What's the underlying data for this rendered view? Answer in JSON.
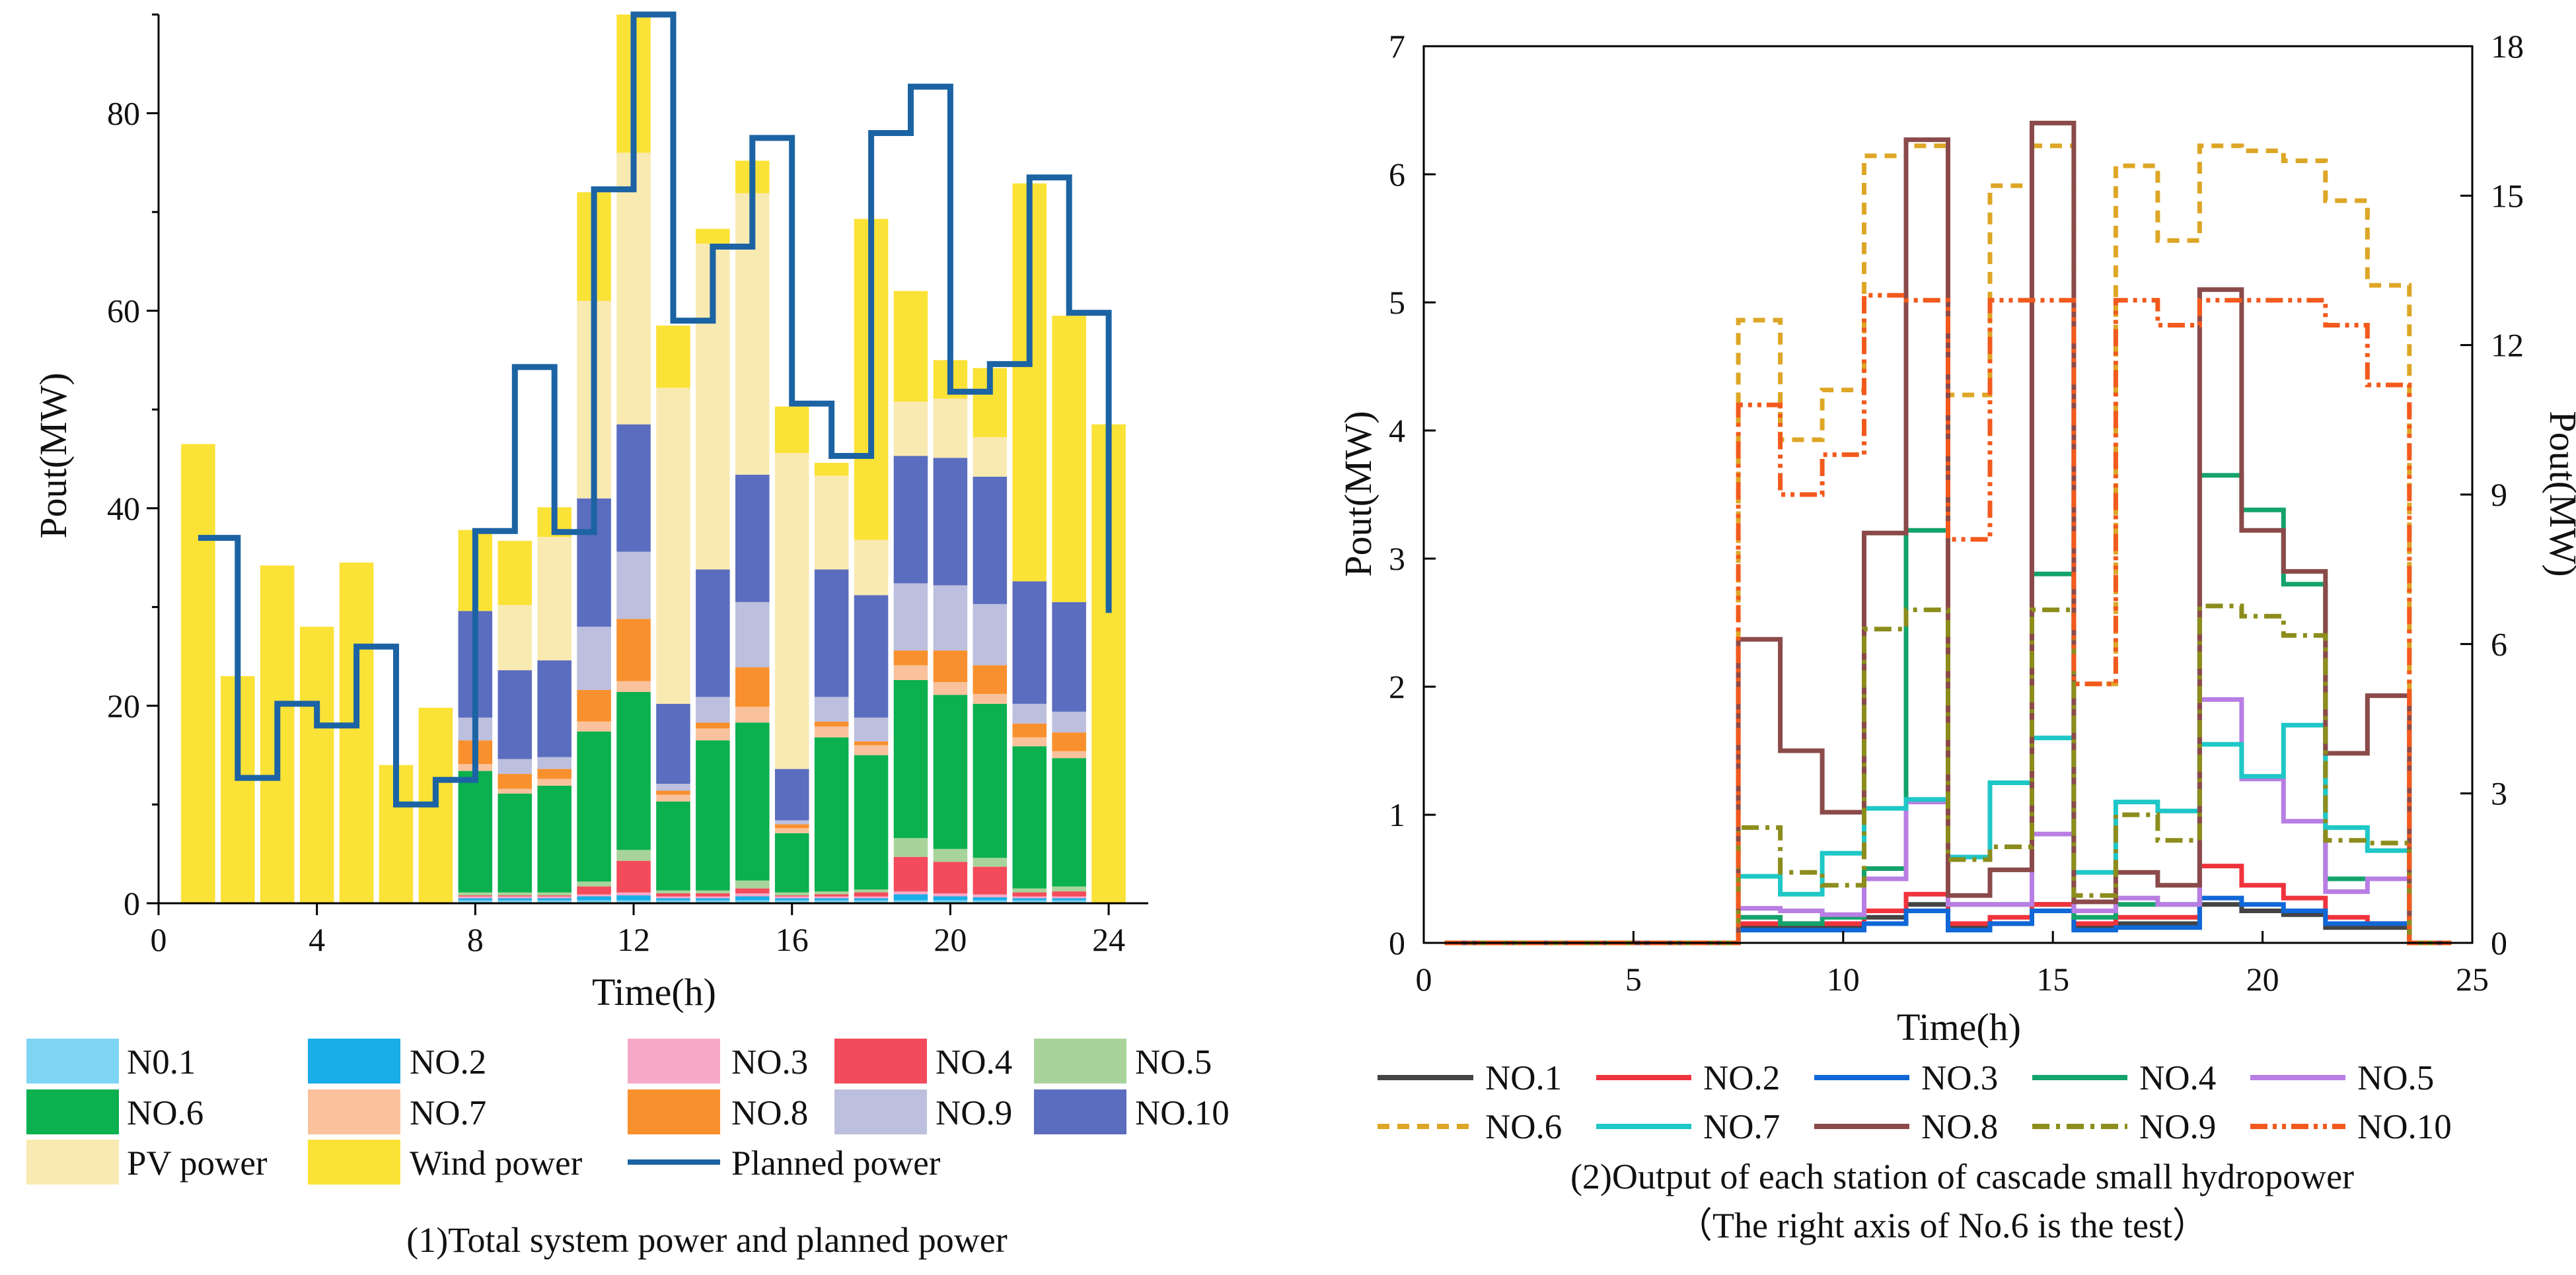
{
  "chart_data": [
    {
      "type": "bar",
      "caption": "(1)Total system power and planned power",
      "xlabel": "Time(h)",
      "ylabel": "Pout(MW)",
      "xlim": [
        0,
        25
      ],
      "ylim": [
        0,
        90
      ],
      "xticks": [
        "0",
        "4",
        "8",
        "12",
        "16",
        "20",
        "24"
      ],
      "yticks": [
        "0",
        "20",
        "40",
        "60",
        "80"
      ],
      "categories": [
        "1",
        "2",
        "3",
        "4",
        "5",
        "6",
        "7",
        "8",
        "9",
        "10",
        "11",
        "12",
        "13",
        "14",
        "15",
        "16",
        "17",
        "18",
        "19",
        "20",
        "21",
        "22",
        "23",
        "24"
      ],
      "series": [
        {
          "name": "N0.1",
          "color": "#7fd6f4",
          "values": [
            0,
            0,
            0,
            0,
            0,
            0,
            0,
            0.3,
            0.3,
            0.3,
            0.3,
            0.3,
            0.3,
            0.3,
            0.3,
            0.3,
            0.3,
            0.3,
            0.3,
            0.3,
            0.3,
            0.3,
            0.3,
            0
          ]
        },
        {
          "name": "NO.2",
          "color": "#19aee8",
          "values": [
            0,
            0,
            0,
            0,
            0,
            0,
            0,
            0.2,
            0.2,
            0.2,
            0.4,
            0.5,
            0.2,
            0.2,
            0.4,
            0.2,
            0.2,
            0.2,
            0.6,
            0.4,
            0.3,
            0.2,
            0.2,
            0
          ]
        },
        {
          "name": "NO.3",
          "color": "#f6a9c7",
          "values": [
            0,
            0,
            0,
            0,
            0,
            0,
            0,
            0.2,
            0.2,
            0.2,
            0.2,
            0.3,
            0.2,
            0.2,
            0.3,
            0.2,
            0.2,
            0.2,
            0.3,
            0.3,
            0.3,
            0.2,
            0.2,
            0
          ]
        },
        {
          "name": "NO.4",
          "color": "#f44b5c",
          "values": [
            0,
            0,
            0,
            0,
            0,
            0,
            0,
            0.1,
            0.1,
            0.1,
            0.8,
            3.2,
            0.3,
            0.3,
            0.5,
            0.1,
            0.2,
            0.4,
            3.5,
            3.2,
            2.8,
            0.4,
            0.5,
            0
          ]
        },
        {
          "name": "NO.5",
          "color": "#a8d49b",
          "values": [
            0,
            0,
            0,
            0,
            0,
            0,
            0,
            0.3,
            0.3,
            0.3,
            0.5,
            1.1,
            0.3,
            0.3,
            0.8,
            0.3,
            0.3,
            0.3,
            1.9,
            1.3,
            0.9,
            0.4,
            0.5,
            0
          ]
        },
        {
          "name": "NO.6",
          "color": "#0bb04f",
          "values": [
            0,
            0,
            0,
            0,
            0,
            0,
            0,
            12.3,
            10,
            10.8,
            15.2,
            16,
            9,
            15.2,
            16,
            6,
            15.6,
            13.6,
            16,
            15.6,
            15.6,
            14.4,
            13,
            0
          ]
        },
        {
          "name": "NO.7",
          "color": "#f9c29c",
          "values": [
            0,
            0,
            0,
            0,
            0,
            0,
            0,
            0.7,
            0.5,
            0.7,
            1,
            1.1,
            0.7,
            1.2,
            1.6,
            0.5,
            1.1,
            1,
            1.5,
            1.3,
            1,
            0.9,
            0.7,
            0
          ]
        },
        {
          "name": "NO.8",
          "color": "#f9902e",
          "values": [
            0,
            0,
            0,
            0,
            0,
            0,
            0,
            2.4,
            1.5,
            1,
            3.2,
            6.3,
            0.4,
            0.6,
            4,
            0.4,
            0.5,
            0.4,
            1.5,
            3.2,
            2.9,
            1.4,
            1.9,
            0
          ]
        },
        {
          "name": "NO.9",
          "color": "#bdbfde",
          "values": [
            0,
            0,
            0,
            0,
            0,
            0,
            0,
            2.3,
            1.5,
            1.2,
            6.4,
            6.8,
            0.7,
            2.6,
            6.6,
            0.4,
            2.5,
            2.4,
            6.8,
            6.6,
            6.2,
            2,
            2.1,
            0
          ]
        },
        {
          "name": "NO.10",
          "color": "#5b6dbf",
          "values": [
            0,
            0,
            0,
            0,
            0,
            0,
            0,
            10.8,
            9,
            9.8,
            13,
            12.9,
            8.1,
            12.9,
            12.9,
            5.2,
            12.9,
            12.4,
            12.9,
            12.9,
            12.9,
            12.4,
            11.1,
            0
          ]
        },
        {
          "name": "PV power",
          "color": "#f9eab2",
          "values": [
            0,
            0,
            0,
            0,
            0,
            0,
            0,
            0,
            6.6,
            12.5,
            20,
            27.5,
            32,
            33,
            28.5,
            32,
            9.5,
            5.6,
            5.5,
            6,
            4,
            0,
            0,
            0
          ]
        },
        {
          "name": "Wind power",
          "color": "#fbe236",
          "values": [
            46.5,
            23,
            34.2,
            28,
            34.5,
            14,
            19.8,
            8.2,
            6.5,
            3,
            11,
            14,
            6.3,
            1.5,
            3.3,
            4.7,
            1.3,
            32.5,
            11.2,
            3.9,
            7,
            40.3,
            29,
            48.5
          ]
        }
      ],
      "planned": {
        "name": "Planned power",
        "color": "#1c63a4",
        "values": [
          37,
          12.7,
          20.2,
          18,
          26,
          10,
          12.5,
          37.7,
          54.3,
          37.6,
          72.3,
          90,
          59,
          66.5,
          77.5,
          50.6,
          45.3,
          78,
          82.7,
          51.8,
          54.6,
          73.5,
          59.8,
          29.4
        ]
      }
    },
    {
      "type": "line",
      "caption": "(2)Output of each station of cascade small hydropower",
      "caption2": "（The right axis of No.6 is the test）",
      "xlabel": "Time(h)",
      "ylabel": "Pout(MW)",
      "ylabel_right": "Pout(MW)",
      "xlim": [
        0,
        25
      ],
      "ylim": [
        0,
        7
      ],
      "ylim_right": [
        0,
        18
      ],
      "xticks": [
        "0",
        "5",
        "10",
        "15",
        "20",
        "25"
      ],
      "yticks": [
        "0",
        "1",
        "2",
        "3",
        "4",
        "5",
        "6",
        "7"
      ],
      "yticks_right": [
        "0",
        "3",
        "6",
        "9",
        "12",
        "15",
        "18"
      ],
      "x": [
        1,
        2,
        3,
        4,
        5,
        6,
        7,
        8,
        9,
        10,
        11,
        12,
        13,
        14,
        15,
        16,
        17,
        18,
        19,
        20,
        21,
        22,
        23,
        24
      ],
      "series": [
        {
          "name": "NO.1",
          "color": "#444444",
          "dash": "",
          "axis": "left",
          "values": [
            0,
            0,
            0,
            0,
            0,
            0,
            0,
            0.12,
            0.12,
            0.12,
            0.2,
            0.3,
            0.12,
            0.15,
            0.3,
            0.12,
            0.15,
            0.15,
            0.3,
            0.25,
            0.22,
            0.12,
            0.12,
            0
          ]
        },
        {
          "name": "NO.2",
          "color": "#f0333c",
          "dash": "",
          "axis": "left",
          "values": [
            0,
            0,
            0,
            0,
            0,
            0,
            0,
            0.15,
            0.15,
            0.15,
            0.25,
            0.38,
            0.15,
            0.2,
            0.3,
            0.15,
            0.2,
            0.2,
            0.6,
            0.45,
            0.35,
            0.2,
            0.15,
            0
          ]
        },
        {
          "name": "NO.3",
          "color": "#1067d6",
          "dash": "",
          "axis": "left",
          "values": [
            0,
            0,
            0,
            0,
            0,
            0,
            0,
            0.1,
            0.1,
            0.1,
            0.15,
            0.25,
            0.1,
            0.15,
            0.25,
            0.1,
            0.12,
            0.12,
            0.35,
            0.3,
            0.25,
            0.15,
            0.15,
            0
          ]
        },
        {
          "name": "NO.4",
          "color": "#13a36b",
          "dash": "",
          "axis": "left",
          "values": [
            0,
            0,
            0,
            0,
            0,
            0,
            0,
            0.2,
            0.15,
            0.2,
            0.58,
            3.22,
            0.3,
            0.3,
            2.88,
            0.2,
            0.3,
            0.3,
            3.65,
            3.38,
            2.8,
            0.5,
            0.5,
            0
          ]
        },
        {
          "name": "NO.5",
          "color": "#b87ee3",
          "dash": "",
          "axis": "left",
          "values": [
            0,
            0,
            0,
            0,
            0,
            0,
            0,
            0.27,
            0.25,
            0.22,
            0.5,
            1.1,
            0.3,
            0.3,
            0.85,
            0.25,
            0.35,
            0.3,
            1.9,
            1.28,
            0.95,
            0.4,
            0.5,
            0
          ]
        },
        {
          "name": "NO.6",
          "color": "#dda626",
          "dash": "18,12",
          "axis": "right",
          "values": [
            0,
            0,
            0,
            0,
            0,
            0,
            0,
            12.5,
            10.1,
            11.1,
            15.8,
            16,
            11,
            15.2,
            16,
            5.2,
            15.6,
            14.1,
            16,
            15.9,
            15.7,
            14.9,
            13.2,
            0
          ]
        },
        {
          "name": "NO.7",
          "color": "#1fc7c7",
          "dash": "",
          "axis": "left",
          "values": [
            0,
            0,
            0,
            0,
            0,
            0,
            0,
            0.52,
            0.38,
            0.7,
            1.05,
            1.12,
            0.67,
            1.25,
            1.6,
            0.55,
            1.1,
            1.03,
            1.55,
            1.3,
            1.7,
            0.9,
            0.72,
            0
          ]
        },
        {
          "name": "NO.8",
          "color": "#8b4a4a",
          "dash": "",
          "axis": "left",
          "values": [
            0,
            0,
            0,
            0,
            0,
            0,
            0,
            2.37,
            1.5,
            1.02,
            3.2,
            6.27,
            0.37,
            0.57,
            6.4,
            0.32,
            0.55,
            0.45,
            5.1,
            3.22,
            2.9,
            1.48,
            1.93,
            0
          ]
        },
        {
          "name": "NO.9",
          "color": "#8c8d1c",
          "dash": "26,10,6,10",
          "axis": "left",
          "values": [
            0,
            0,
            0,
            0,
            0,
            0,
            0,
            0.9,
            0.55,
            0.45,
            2.45,
            2.6,
            0.65,
            0.75,
            2.6,
            0.37,
            1.0,
            0.8,
            2.63,
            2.55,
            2.4,
            0.8,
            0.78,
            0
          ]
        },
        {
          "name": "NO.10",
          "color": "#f25a1d",
          "dash": "26,8,6,8,6,8",
          "axis": "right",
          "values": [
            0,
            0,
            0,
            0,
            0,
            0,
            0,
            10.8,
            9,
            9.8,
            13,
            12.9,
            8.1,
            12.9,
            12.9,
            5.2,
            12.9,
            12.4,
            12.9,
            12.9,
            12.9,
            12.4,
            11.2,
            0
          ]
        }
      ]
    }
  ]
}
